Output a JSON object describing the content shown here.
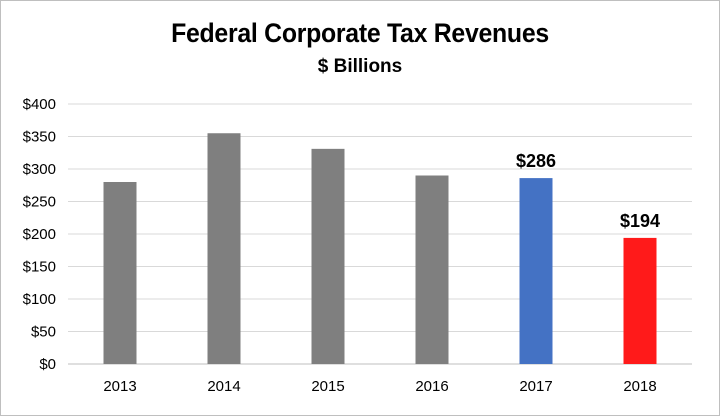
{
  "chart_data": {
    "type": "bar",
    "title": "Federal Corporate Tax Revenues",
    "subtitle": "$ Billions",
    "xlabel": "",
    "ylabel": "",
    "categories": [
      "2013",
      "2014",
      "2015",
      "2016",
      "2017",
      "2018"
    ],
    "values": [
      280,
      355,
      331,
      290,
      286,
      194
    ],
    "bar_colors": [
      "#7f7f7f",
      "#7f7f7f",
      "#7f7f7f",
      "#7f7f7f",
      "#4472c4",
      "#ff1a1a"
    ],
    "data_labels": [
      "",
      "",
      "",
      "",
      "$286",
      "$194"
    ],
    "ylim": [
      0,
      400
    ],
    "yticks": [
      0,
      50,
      100,
      150,
      200,
      250,
      300,
      350,
      400
    ],
    "ytick_labels": [
      "$0",
      "$50",
      "$100",
      "$150",
      "$200",
      "$250",
      "$300",
      "$350",
      "$400"
    ],
    "grid": true,
    "legend": "none"
  },
  "colors": {
    "gridline": "#d9d9d9",
    "axis": "#bfbfbf"
  }
}
